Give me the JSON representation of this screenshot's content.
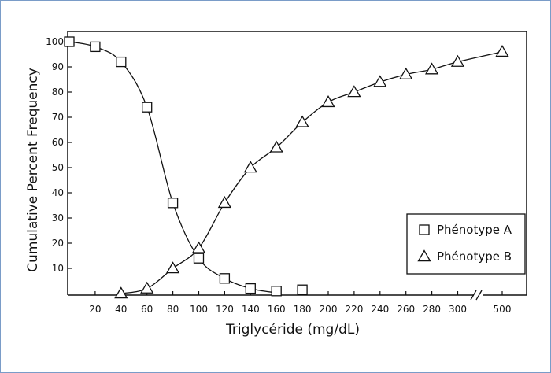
{
  "chart_data": {
    "type": "scatter",
    "title": "",
    "xlabel": "Triglycéride (mg/dL)",
    "ylabel": "Cumulative Percent Frequency",
    "xlim": [
      0,
      500
    ],
    "ylim": [
      0,
      100
    ],
    "x_axis_break": [
      300,
      500
    ],
    "x_ticks": [
      20,
      40,
      60,
      80,
      100,
      120,
      140,
      160,
      180,
      200,
      220,
      240,
      260,
      280,
      300,
      500
    ],
    "y_ticks": [
      10,
      20,
      30,
      40,
      50,
      60,
      70,
      80,
      90,
      100
    ],
    "legend_position": "bottom-right",
    "grid": false,
    "series": [
      {
        "name": "Phénotype A",
        "marker": "square",
        "x": [
          0,
          20,
          40,
          60,
          80,
          100,
          120,
          140,
          160,
          180
        ],
        "y": [
          100,
          98,
          92,
          74,
          36,
          14,
          6,
          2,
          1,
          1.5
        ]
      },
      {
        "name": "Phénotype B",
        "marker": "triangle",
        "x": [
          40,
          60,
          80,
          100,
          120,
          140,
          160,
          180,
          200,
          220,
          240,
          260,
          280,
          300,
          500
        ],
        "y": [
          0,
          2,
          10,
          18,
          36,
          50,
          58,
          68,
          76,
          80,
          84,
          87,
          89,
          92,
          96
        ]
      }
    ]
  }
}
